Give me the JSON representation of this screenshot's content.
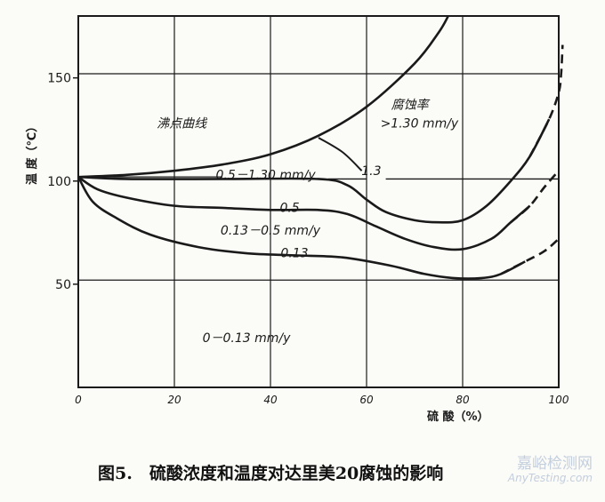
{
  "chart_data": {
    "type": "line",
    "xlabel": "硫 酸（%）",
    "ylabel": "温 度（℃）",
    "xlim": [
      0,
      100
    ],
    "ylim": [
      0,
      180
    ],
    "x_ticks": [
      0,
      20,
      40,
      60,
      80,
      100
    ],
    "y_ticks": [
      50,
      100,
      150
    ],
    "grid": true,
    "series": [
      {
        "name": "沸点曲线",
        "dashed_tail_from": null,
        "points": [
          [
            0,
            102
          ],
          [
            10,
            103
          ],
          [
            20,
            105
          ],
          [
            30,
            108
          ],
          [
            40,
            113
          ],
          [
            50,
            122
          ],
          [
            60,
            136
          ],
          [
            70,
            157
          ],
          [
            75,
            172
          ],
          [
            77,
            180
          ]
        ]
      },
      {
        "name": "",
        "dashed_tail_from": 98,
        "points": [
          [
            0,
            102
          ],
          [
            10,
            101
          ],
          [
            30,
            101
          ],
          [
            50,
            101
          ],
          [
            56,
            98
          ],
          [
            60,
            91
          ],
          [
            64,
            85
          ],
          [
            70,
            81
          ],
          [
            75,
            80
          ],
          [
            80,
            81
          ],
          [
            85,
            88
          ],
          [
            90,
            100
          ],
          [
            94,
            112
          ],
          [
            98,
            130
          ],
          [
            100,
            143
          ],
          [
            100.5,
            152
          ],
          [
            100.8,
            166
          ]
        ]
      },
      {
        "name": "",
        "dashed_tail_from": 94,
        "points": [
          [
            0,
            102
          ],
          [
            4,
            96
          ],
          [
            10,
            92
          ],
          [
            20,
            88
          ],
          [
            30,
            87
          ],
          [
            40,
            86
          ],
          [
            50,
            86
          ],
          [
            56,
            84
          ],
          [
            62,
            78
          ],
          [
            68,
            72
          ],
          [
            74,
            68
          ],
          [
            80,
            67
          ],
          [
            86,
            72
          ],
          [
            90,
            80
          ],
          [
            94,
            88
          ],
          [
            97,
            97
          ],
          [
            100,
            105
          ]
        ]
      },
      {
        "name": "",
        "dashed_tail_from": 93,
        "points": [
          [
            0,
            102
          ],
          [
            3,
            90
          ],
          [
            8,
            82
          ],
          [
            15,
            74
          ],
          [
            25,
            68
          ],
          [
            35,
            65
          ],
          [
            45,
            64
          ],
          [
            55,
            63
          ],
          [
            65,
            59
          ],
          [
            72,
            55
          ],
          [
            78,
            53
          ],
          [
            84,
            53
          ],
          [
            88,
            55
          ],
          [
            93,
            61
          ],
          [
            97,
            66
          ],
          [
            100,
            72
          ]
        ]
      }
    ],
    "annotations": [
      {
        "text": "沸点曲线",
        "x": 21.5,
        "y": 126
      },
      {
        "text": "腐蚀率",
        "x": 69,
        "y": 135
      },
      {
        "text": ">1.30 mm/y",
        "x": 71,
        "y": 126
      },
      {
        "text": "0.5－1.30 mm/y",
        "x": 39,
        "y": 101
      },
      {
        "text": "1.3",
        "x": 61,
        "y": 103
      },
      {
        "text": "0.5",
        "x": 44,
        "y": 85
      },
      {
        "text": "0.13－0.5 mm/y",
        "x": 40,
        "y": 74
      },
      {
        "text": "0.13",
        "x": 45,
        "y": 63
      },
      {
        "text": "0－0.13 mm/y",
        "x": 35,
        "y": 22
      }
    ],
    "reference_lines": [
      {
        "x_from": 0,
        "x_to": 30,
        "y": 102
      },
      {
        "x_from": 52,
        "x_to": 60,
        "y": 101
      },
      {
        "x_from": 64,
        "x_to": 100,
        "y": 101
      },
      {
        "x_from": 0,
        "x_to": 100,
        "y": 152
      },
      {
        "x_from": 0,
        "x_to": 100,
        "y": 52
      }
    ]
  },
  "caption": "图5.　硫酸浓度和温度对达里美20腐蚀的影响",
  "watermark": {
    "line1": "嘉峪检测网",
    "line2": "AnyTesting.com"
  },
  "colors": {
    "ink": "#1a1a1a",
    "paper": "#fbfbf7"
  }
}
